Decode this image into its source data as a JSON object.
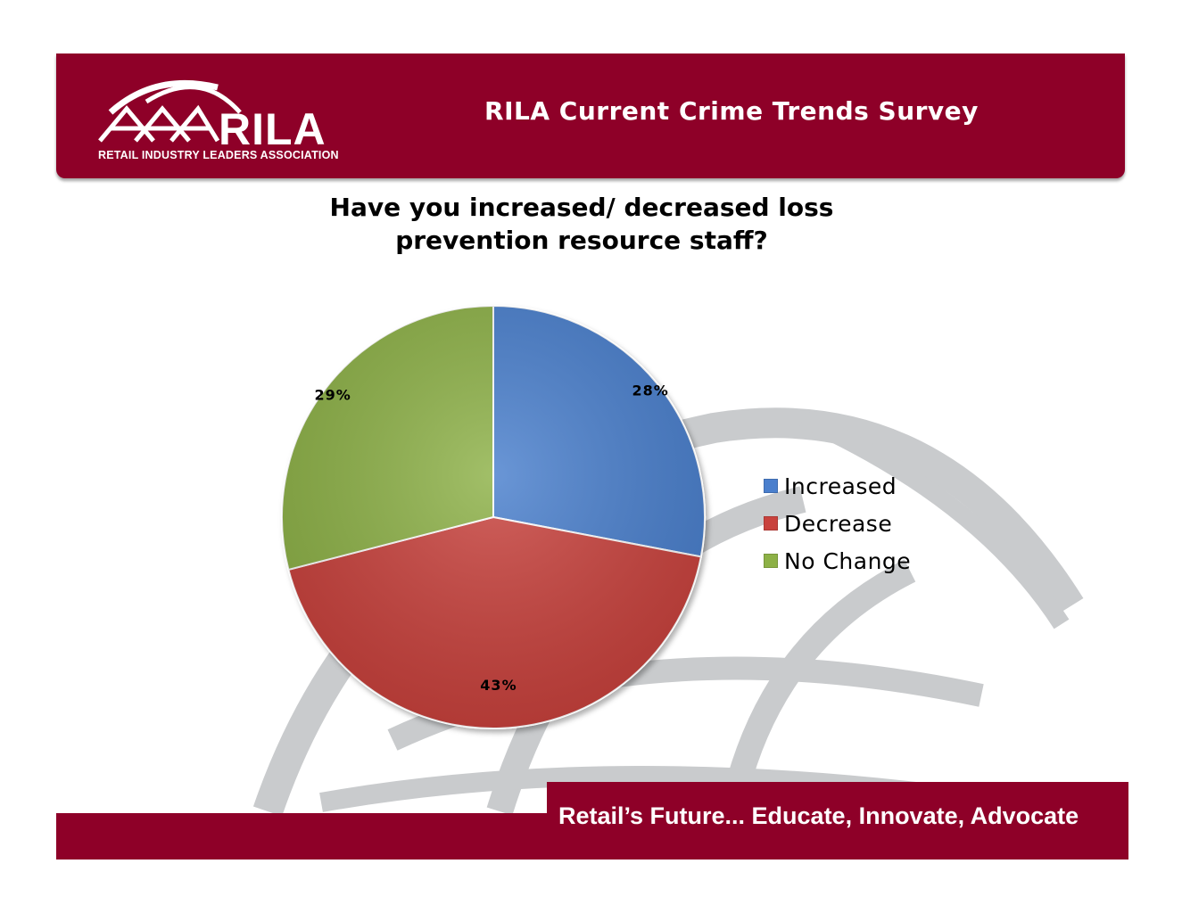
{
  "header": {
    "title": "RILA Current Crime Trends Survey",
    "logo_word": "RILA",
    "logo_subtitle": "RETAIL INDUSTRY LEADERS ASSOCIATION"
  },
  "footer": {
    "tagline": "Retail’s Future... Educate, Innovate, Advocate"
  },
  "colors": {
    "brand": "#8e0028",
    "watermark": "#c9cbcd"
  },
  "chart_data": {
    "type": "pie",
    "title_lines": [
      "Have you increased/ decreased loss",
      "prevention resource staff?"
    ],
    "categories": [
      "Increased",
      "Decrease",
      "No Change"
    ],
    "values": [
      28,
      43,
      29
    ],
    "data_labels": [
      "28%",
      "43%",
      "29%"
    ],
    "colors": [
      "#4a7fcd",
      "#c9423d",
      "#8db146"
    ],
    "legend_position": "right"
  }
}
